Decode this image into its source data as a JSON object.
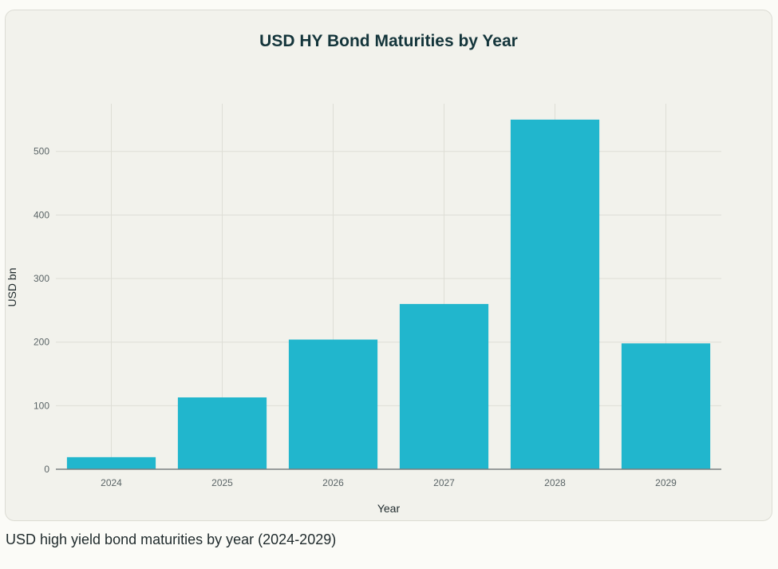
{
  "chart_data": {
    "type": "bar",
    "title": "USD HY Bond Maturities by Year",
    "xlabel": "Year",
    "ylabel": "USD bn",
    "categories": [
      "2024",
      "2025",
      "2026",
      "2027",
      "2028",
      "2029"
    ],
    "values": [
      19,
      113,
      204,
      260,
      550,
      198
    ],
    "ylim": [
      0,
      575
    ],
    "yticks": [
      0,
      100,
      200,
      300,
      400,
      500
    ],
    "grid": true,
    "bar_color": "#21b6cd"
  },
  "caption": "USD high yield bond maturities by year (2024-2029)"
}
